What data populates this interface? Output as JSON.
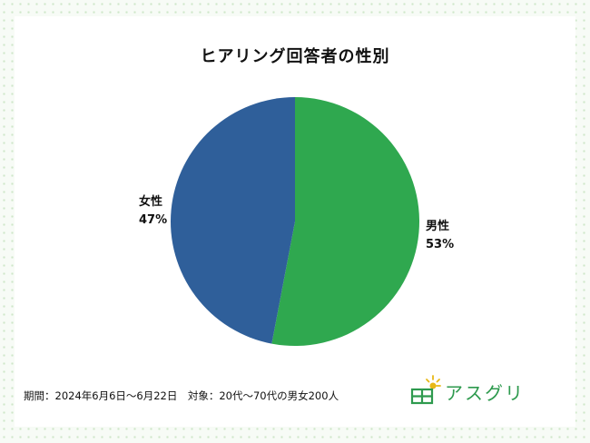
{
  "chart_data": {
    "type": "pie",
    "title": "ヒアリング回答者の性別",
    "slices": [
      {
        "label": "男性",
        "value": 53,
        "value_label": "53%",
        "color": "#2fa84f"
      },
      {
        "label": "女性",
        "value": 47,
        "value_label": "47%",
        "color": "#2f5f9a"
      }
    ],
    "legend": "none"
  },
  "footer": {
    "note": "期間：2024年6月6日〜6月22日　対象：20代〜70代の男女200人"
  },
  "brand": {
    "name": "アスグリ",
    "logo_icon": "house-sun-icon",
    "color": "#2e9a4e"
  }
}
